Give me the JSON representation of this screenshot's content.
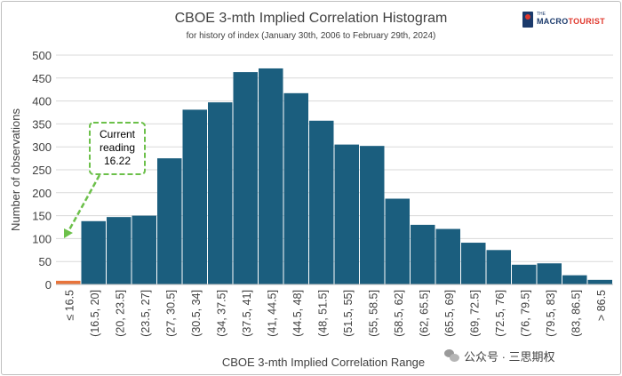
{
  "chart_data": {
    "type": "bar",
    "title": "CBOE 3-mth Implied Correlation Histogram",
    "subtitle": "for history of index (January 30th, 2006 to February 29th, 2024)",
    "xlabel": "CBOE 3-mth Implied Correlation Range",
    "ylabel": "Number of observations",
    "ylim": [
      0,
      500
    ],
    "yticks": [
      0,
      50,
      100,
      150,
      200,
      250,
      300,
      350,
      400,
      450,
      500
    ],
    "grid": true,
    "categories": [
      "≤ 16.5",
      "(16.5, 20]",
      "(20, 23.5]",
      "(23.5, 27]",
      "(27, 30.5]",
      "(30.5, 34]",
      "(34, 37.5]",
      "(37.5, 41]",
      "(41, 44.5]",
      "(44.5, 48]",
      "(48, 51.5]",
      "(51.5, 55]",
      "(55, 58.5]",
      "(58.5, 62]",
      "(62, 65.5]",
      "(65.5, 69]",
      "(69, 72.5]",
      "(72.5, 76]",
      "(76, 79.5]",
      "(79.5, 83]",
      "(83, 86.5]",
      "> 86.5"
    ],
    "values": [
      8,
      138,
      147,
      150,
      275,
      381,
      397,
      463,
      471,
      417,
      357,
      305,
      302,
      187,
      130,
      121,
      91,
      75,
      43,
      46,
      20,
      10
    ],
    "colors": {
      "bar": "#1b5e7e",
      "highlight": "#e8743b",
      "annotation": "#6cc04a"
    },
    "highlight_index": 0,
    "annotation": {
      "text_lines": [
        "Current",
        "reading",
        "16.22"
      ]
    }
  },
  "branding": {
    "logo_small": "THE",
    "logo_part1": "MACRO",
    "logo_part2": "TOURIST"
  },
  "watermark": {
    "text": "公众号 · 三思期权"
  }
}
